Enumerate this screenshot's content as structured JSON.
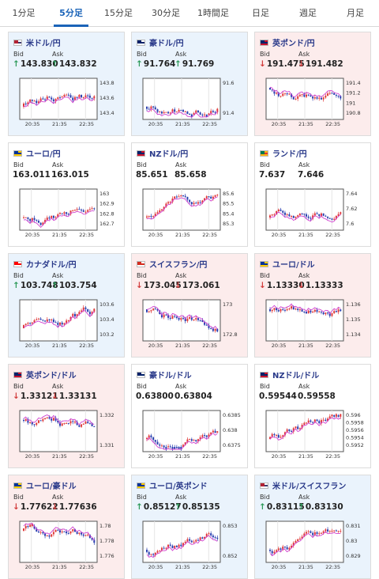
{
  "tabs": [
    "1分足",
    "5分足",
    "15分足",
    "30分足",
    "1時間足",
    "日足",
    "週足",
    "月足"
  ],
  "active_tab_index": 1,
  "bid_label": "Bid",
  "ask_label": "Ask",
  "colors": {
    "accent": "#1a63b8",
    "up": "#2d9a5a",
    "down": "#d23c3c",
    "candle_up": "#e03a3a",
    "candle_down": "#2a3fb0",
    "ma": "#d040d0"
  },
  "cards": [
    {
      "pair": "米ドル/円",
      "flag": "us-jp-flag-icon",
      "bid": "143.830",
      "ask": "143.832",
      "dir": "up",
      "x_labels": [
        "20:35",
        "21:35",
        "22:35"
      ],
      "y_labels": [
        "143.8",
        "143.6",
        "143.4"
      ]
    },
    {
      "pair": "豪ドル/円",
      "flag": "au-jp-flag-icon",
      "bid": "91.764",
      "ask": "91.769",
      "dir": "up",
      "x_labels": [
        "20:35",
        "21:35",
        "22:35"
      ],
      "y_labels": [
        "91.6",
        "91.4"
      ]
    },
    {
      "pair": "英ポンド/円",
      "flag": "gb-jp-flag-icon",
      "bid": "191.475",
      "ask": "191.482",
      "dir": "down",
      "x_labels": [
        "20:35",
        "21:35",
        "22:35"
      ],
      "y_labels": [
        "191.4",
        "191.2",
        "191",
        "190.8"
      ]
    },
    {
      "pair": "ユーロ/円",
      "flag": "eu-jp-flag-icon",
      "bid": "163.011",
      "ask": "163.015",
      "dir": "none",
      "x_labels": [
        "20:35",
        "21:35",
        "22:35"
      ],
      "y_labels": [
        "163",
        "162.9",
        "162.8",
        "162.7"
      ]
    },
    {
      "pair": "NZドル/円",
      "flag": "nz-jp-flag-icon",
      "bid": "85.651",
      "ask": "85.658",
      "dir": "none",
      "x_labels": [
        "20:35",
        "21:35",
        "22:35"
      ],
      "y_labels": [
        "85.6",
        "85.5",
        "85.4",
        "85.3"
      ]
    },
    {
      "pair": "ランド/円",
      "flag": "za-jp-flag-icon",
      "bid": "7.637",
      "ask": "7.646",
      "dir": "none",
      "x_labels": [
        "20:35",
        "21:35",
        "22:35"
      ],
      "y_labels": [
        "7.64",
        "7.62",
        "7.6"
      ]
    },
    {
      "pair": "カナダドル/円",
      "flag": "ca-jp-flag-icon",
      "bid": "103.748",
      "ask": "103.754",
      "dir": "up",
      "x_labels": [
        "20:35",
        "21:35",
        "22:35"
      ],
      "y_labels": [
        "103.6",
        "103.4",
        "103.2"
      ]
    },
    {
      "pair": "スイスフラン/円",
      "flag": "ch-jp-flag-icon",
      "bid": "173.045",
      "ask": "173.061",
      "dir": "down",
      "x_labels": [
        "20:35",
        "21:35",
        "22:35"
      ],
      "y_labels": [
        "173",
        "172.8"
      ]
    },
    {
      "pair": "ユーロ/ドル",
      "flag": "eu-us-flag-icon",
      "bid": "1.13330",
      "ask": "1.13333",
      "dir": "down",
      "x_labels": [
        "20:35",
        "21:35",
        "22:35"
      ],
      "y_labels": [
        "1.136",
        "1.135",
        "1.134"
      ]
    },
    {
      "pair": "英ポンド/ドル",
      "flag": "gb-us-flag-icon",
      "bid": "1.33121",
      "ask": "1.33131",
      "dir": "down",
      "x_labels": [
        "20:35",
        "21:35",
        "22:35"
      ],
      "y_labels": [
        "1.332",
        "1.331"
      ]
    },
    {
      "pair": "豪ドル/ドル",
      "flag": "au-us-flag-icon",
      "bid": "0.63800",
      "ask": "0.63804",
      "dir": "none",
      "x_labels": [
        "20:35",
        "21:35",
        "22:35"
      ],
      "y_labels": [
        "0.6385",
        "0.638",
        "0.6375"
      ]
    },
    {
      "pair": "NZドル/ドル",
      "flag": "nz-us-flag-icon",
      "bid": "0.59544",
      "ask": "0.59558",
      "dir": "none",
      "x_labels": [
        "20:35",
        "21:35",
        "22:35"
      ],
      "y_labels": [
        "0.596",
        "0.5958",
        "0.5956",
        "0.5954",
        "0.5952"
      ]
    },
    {
      "pair": "ユーロ/豪ドル",
      "flag": "eu-au-flag-icon",
      "bid": "1.77622",
      "ask": "1.77636",
      "dir": "down",
      "x_labels": [
        "20:35",
        "21:35",
        "22:35"
      ],
      "y_labels": [
        "1.78",
        "1.778",
        "1.776"
      ]
    },
    {
      "pair": "ユーロ/英ポンド",
      "flag": "eu-gb-flag-icon",
      "bid": "0.85127",
      "ask": "0.85135",
      "dir": "up",
      "x_labels": [
        "20:35",
        "21:35",
        "22:35"
      ],
      "y_labels": [
        "0.853",
        "0.852"
      ]
    },
    {
      "pair": "米ドル/スイスフラン",
      "flag": "us-ch-flag-icon",
      "bid": "0.83115",
      "ask": "0.83130",
      "dir": "up",
      "x_labels": [
        "20:35",
        "21:35",
        "22:35"
      ],
      "y_labels": [
        "0.831",
        "0.83",
        "0.829"
      ]
    }
  ]
}
